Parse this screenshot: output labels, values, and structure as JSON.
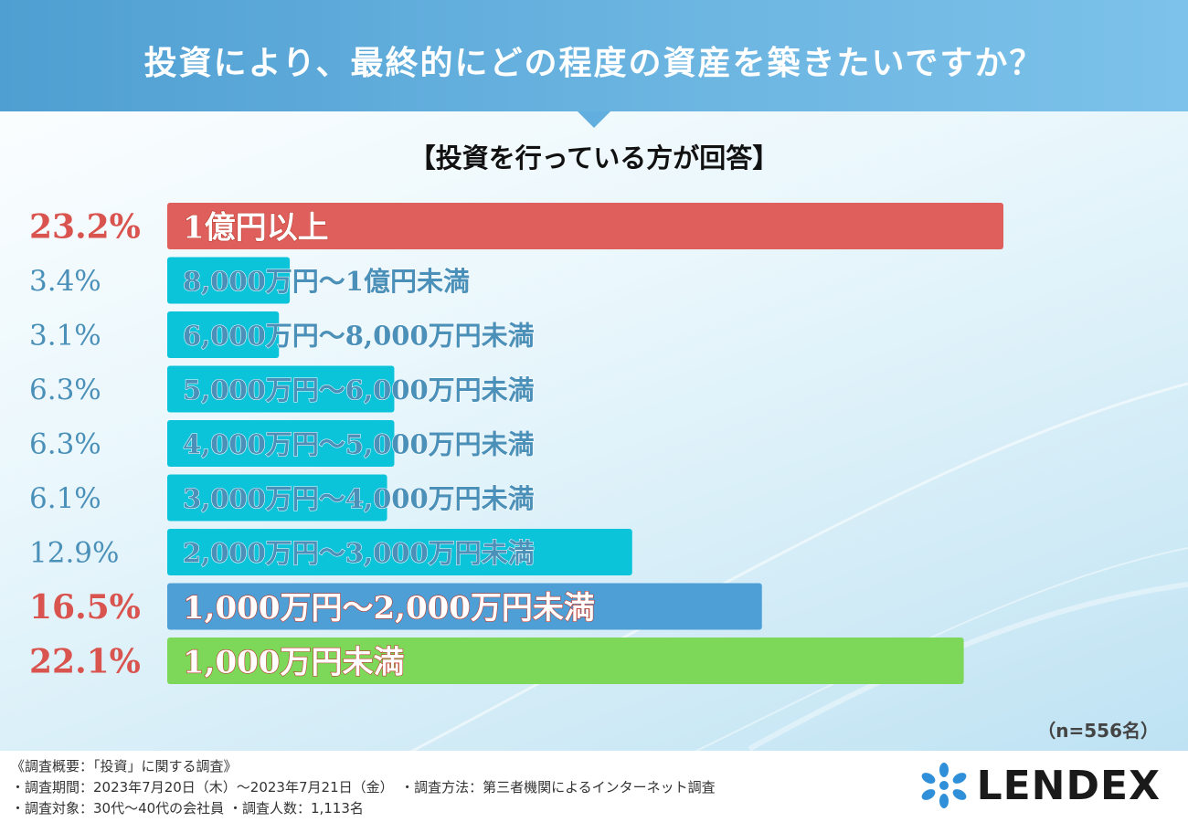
{
  "header": {
    "title": "投資により、最終的にどの程度の資産を築きたいですか？",
    "subtitle": "【投資を行っている方が回答】"
  },
  "chart_data": {
    "type": "bar",
    "orientation": "horizontal",
    "categories": [
      "1億円以上",
      "8,000万円～1億円未満",
      "6,000万円～8,000万円未満",
      "5,000万円～6,000万円未満",
      "4,000万円～5,000万円未満",
      "3,000万円～4,000万円未満",
      "2,000万円～3,000万円未満",
      "1,000万円～2,000万円未満",
      "1,000万円未満"
    ],
    "values": [
      23.2,
      3.4,
      3.1,
      6.3,
      6.3,
      6.1,
      12.9,
      16.5,
      22.1
    ],
    "value_labels": [
      "23.2%",
      "3.4%",
      "3.1%",
      "6.3%",
      "6.3%",
      "6.1%",
      "12.9%",
      "16.5%",
      "22.1%"
    ],
    "colors": [
      "#df5f5d",
      "#0cc4da",
      "#0cc4da",
      "#0cc4da",
      "#0cc4da",
      "#0cc4da",
      "#0cc4da",
      "#4d9fd6",
      "#7dd85a"
    ],
    "label_colors": [
      "#d9534f",
      "#4a90b8",
      "#4a90b8",
      "#4a90b8",
      "#4a90b8",
      "#4a90b8",
      "#4a90b8",
      "#d9534f",
      "#d9534f"
    ],
    "highlight": [
      true,
      false,
      false,
      false,
      false,
      false,
      false,
      true,
      true
    ],
    "title": "投資により、最終的にどの程度の資産を築きたいですか？",
    "xlim": [
      0,
      25
    ],
    "grid": false,
    "legend": "none"
  },
  "sample": "（n=556名）",
  "footer": {
    "line1": "《調査概要：「投資」に関する調査》",
    "line2": "・調査期間：2023年7月20日（木）～2023年7月21日（金）　・調査方法：第三者機関によるインターネット調査",
    "line3": "・調査対象：30代～40代の会社員 ・調査人数：1,113名"
  },
  "brand": {
    "name": "LENDEX",
    "logo_icon": "dots-burst-icon",
    "logo_color": "#2f8fd8"
  }
}
